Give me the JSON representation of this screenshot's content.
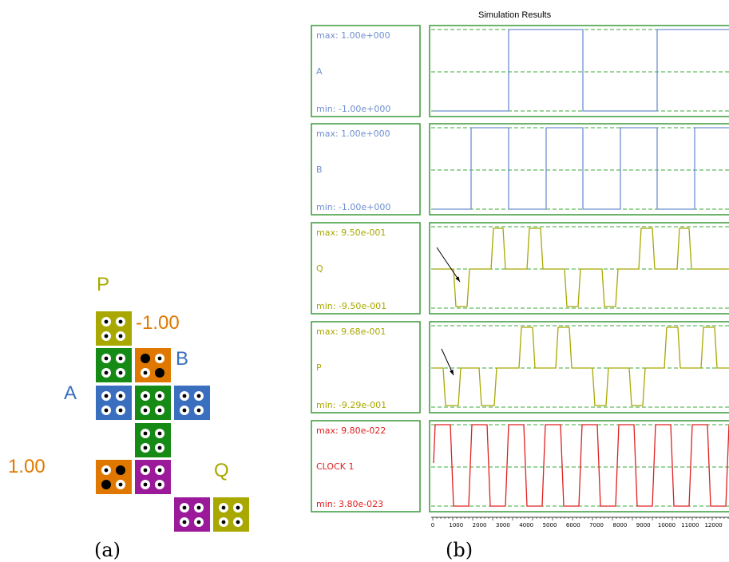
{
  "diagram": {
    "labels": {
      "P": "P",
      "neg": "-1.00",
      "B": "B",
      "A": "A",
      "pos": "1.00",
      "Q": "Q"
    },
    "label_colors": {
      "P": "#a8a800",
      "neg": "#e07800",
      "B": "#3a6fbf",
      "A": "#3a6fbf",
      "pos": "#e07800",
      "Q": "#a8a800"
    },
    "tile_colors": {
      "olive": "#a8a800",
      "green": "#158a15",
      "orange": "#e07800",
      "blue": "#3a6fbf",
      "purple": "#9a1a9a"
    },
    "tiles": [
      {
        "name": "tile-p",
        "color": "olive",
        "dots": [
          "w",
          "w",
          "w",
          "w"
        ]
      },
      {
        "name": "tile-green-1",
        "color": "green",
        "dots": [
          "w",
          "w",
          "w",
          "w"
        ]
      },
      {
        "name": "tile-orange-b",
        "color": "orange",
        "dots": [
          "b",
          "w",
          "w",
          "b"
        ]
      },
      {
        "name": "tile-blue-a",
        "color": "blue",
        "dots": [
          "w",
          "w",
          "w",
          "w"
        ]
      },
      {
        "name": "tile-green-2",
        "color": "green",
        "dots": [
          "w",
          "w",
          "w",
          "w"
        ]
      },
      {
        "name": "tile-blue-b",
        "color": "blue",
        "dots": [
          "w",
          "w",
          "w",
          "w"
        ]
      },
      {
        "name": "tile-green-3",
        "color": "green",
        "dots": [
          "w",
          "w",
          "w",
          "w"
        ]
      },
      {
        "name": "tile-orange-1",
        "color": "orange",
        "dots": [
          "w",
          "b",
          "b",
          "w"
        ]
      },
      {
        "name": "tile-purple-1",
        "color": "purple",
        "dots": [
          "w",
          "w",
          "w",
          "w"
        ]
      },
      {
        "name": "tile-purple-2",
        "color": "purple",
        "dots": [
          "w",
          "w",
          "w",
          "w"
        ]
      },
      {
        "name": "tile-q",
        "color": "olive",
        "dots": [
          "w",
          "w",
          "w",
          "w"
        ]
      }
    ],
    "caption_a": "(a)",
    "caption_b": "(b)"
  },
  "sim": {
    "title": "Simulation Results",
    "panels": [
      {
        "signal": "A",
        "max": "max: 1.00e+000",
        "min": "min: -1.00e+000",
        "color": "#6f8fcf"
      },
      {
        "signal": "B",
        "max": "max: 1.00e+000",
        "min": "min: -1.00e+000",
        "color": "#6f8fcf"
      },
      {
        "signal": "Q",
        "max": "max: 9.50e-001",
        "min": "min: -9.50e-001",
        "color": "#a8a800"
      },
      {
        "signal": "P",
        "max": "max: 9.68e-001",
        "min": "min: -9.29e-001",
        "color": "#a8a800"
      },
      {
        "signal": "CLOCK 1",
        "max": "max: 9.80e-022",
        "min": "min: 3.80e-023",
        "color": "#e02020"
      }
    ],
    "grid_color": "#3aaa3a",
    "axis_ticks": [
      "0",
      "1000",
      "2000",
      "3000",
      "4000",
      "5000",
      "6000",
      "7000",
      "8000",
      "9000",
      "10000",
      "11000",
      "12000"
    ]
  }
}
